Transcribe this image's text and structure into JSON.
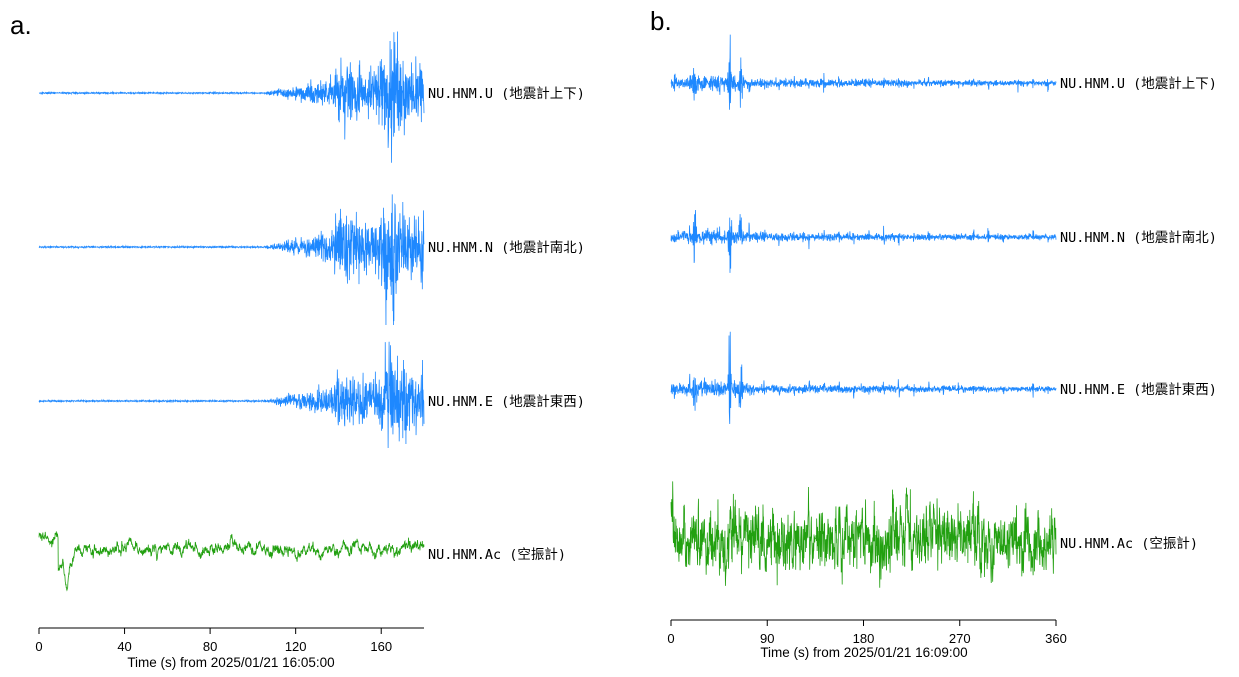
{
  "chart_data": [
    {
      "type": "line",
      "panel": "a.",
      "xlabel": "Time (s) from 2025/01/21 16:05:00",
      "xlim": [
        0,
        180
      ],
      "xticks": [
        0,
        40,
        80,
        120,
        160
      ],
      "series": [
        {
          "name": "NU.HNM.U (地震計上下)",
          "color": "#1e88ff",
          "kind": "seismic",
          "onset": 105,
          "peak": 165,
          "duration": 180
        },
        {
          "name": "NU.HNM.N (地震計南北)",
          "color": "#1e88ff",
          "kind": "seismic",
          "onset": 105,
          "peak": 165,
          "duration": 180
        },
        {
          "name": "NU.HNM.E (地震計東西)",
          "color": "#1e88ff",
          "kind": "seismic",
          "onset": 105,
          "peak": 165,
          "duration": 180
        },
        {
          "name": "NU.HNM.Ac (空振計)",
          "color": "#22a010",
          "kind": "infrasound",
          "dip_at": 13,
          "duration": 180
        }
      ]
    },
    {
      "type": "line",
      "panel": "b.",
      "xlabel": "Time (s) from 2025/01/21 16:09:00",
      "xlim": [
        0,
        360
      ],
      "xticks": [
        0,
        90,
        180,
        270,
        360
      ],
      "series": [
        {
          "name": "NU.HNM.U (地震計上下)",
          "color": "#1e88ff",
          "kind": "tremor",
          "spike_at": 55,
          "duration": 360
        },
        {
          "name": "NU.HNM.N (地震計南北)",
          "color": "#1e88ff",
          "kind": "tremor",
          "spike_at": 55,
          "duration": 360
        },
        {
          "name": "NU.HNM.E (地震計東西)",
          "color": "#1e88ff",
          "kind": "tremor",
          "spike_at": 55,
          "duration": 360
        },
        {
          "name": "NU.HNM.Ac (空振計)",
          "color": "#22a010",
          "kind": "noise",
          "duration": 360
        }
      ]
    }
  ]
}
